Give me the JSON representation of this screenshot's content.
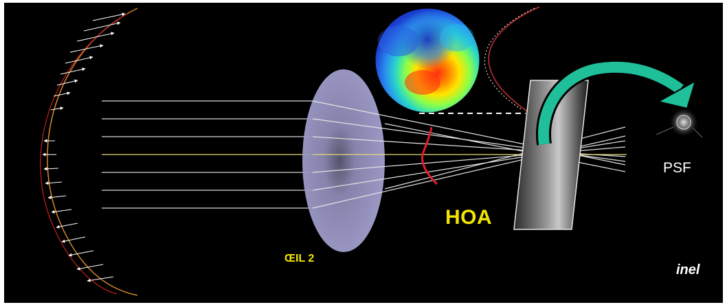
{
  "labels": {
    "hoa": "HOA",
    "eye": "ŒIL 2",
    "psf": "PSF",
    "credit": "inel"
  },
  "colors": {
    "background": "#000000",
    "frame": "#ffffff",
    "label_yellow": "#f2e600",
    "arrow_green": "#1fbf9a",
    "aberration_red": "#e0202a",
    "wavefront_orange": "#d98a2a",
    "lens_fill": "#9a98c8"
  },
  "icons": {
    "wavefront_map": "aberration-color-map",
    "psf_spot": "psf-spot-icon",
    "arrow": "curved-arrow"
  }
}
